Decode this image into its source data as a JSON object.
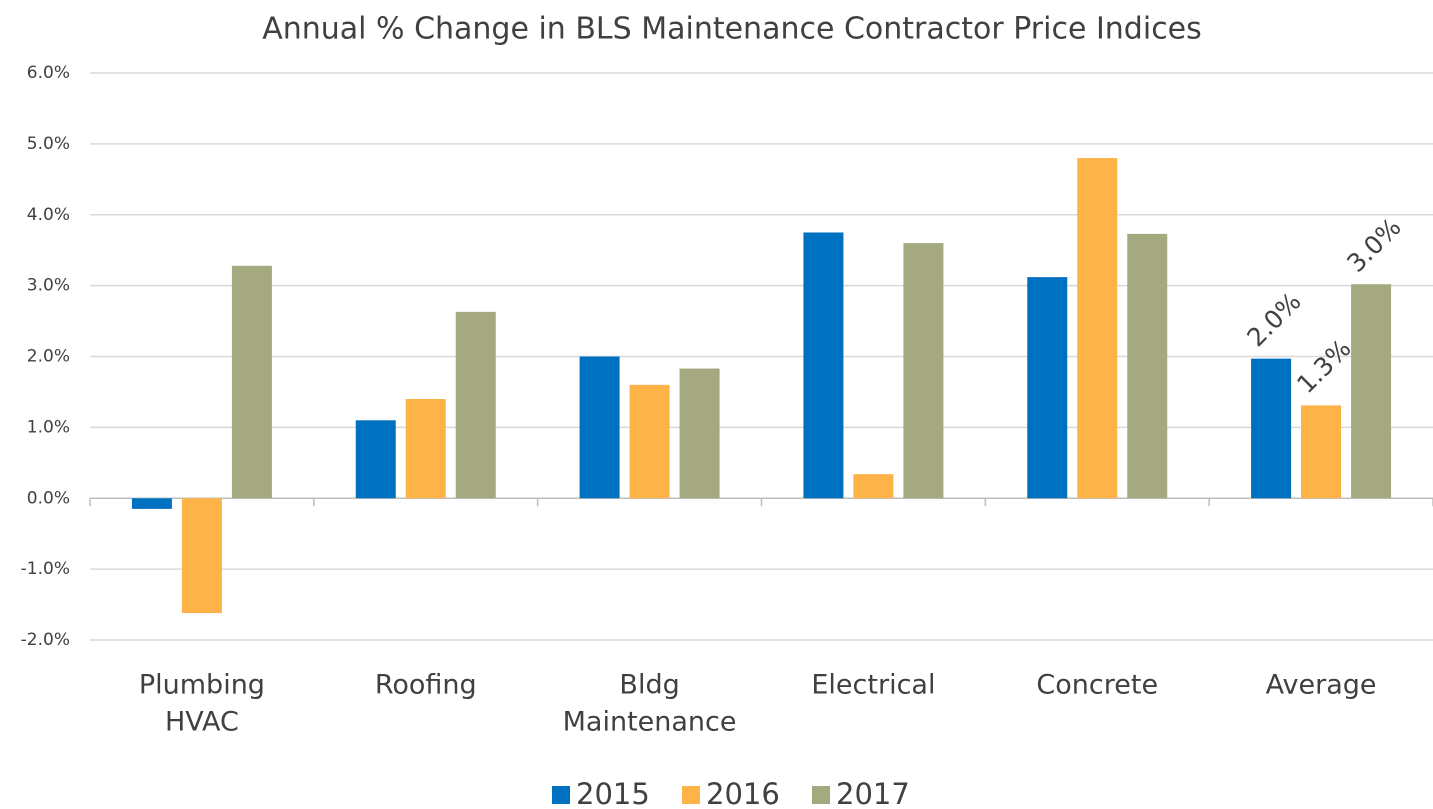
{
  "chart_data": {
    "type": "bar",
    "title": "Annual % Change in BLS Maintenance Contractor Price Indices",
    "categories": [
      [
        "Plumbing",
        "HVAC"
      ],
      [
        "Roofing"
      ],
      [
        "Bldg",
        "Maintenance"
      ],
      [
        "Electrical"
      ],
      [
        "Concrete"
      ],
      [
        "Average"
      ]
    ],
    "series": [
      {
        "name": "2015",
        "color": "#0070c0",
        "values": [
          -0.15,
          1.1,
          2.0,
          3.75,
          3.12,
          1.97
        ],
        "value_labels": [
          null,
          null,
          null,
          null,
          null,
          "2.0%"
        ]
      },
      {
        "name": "2016",
        "color": "#fdb347",
        "values": [
          -1.62,
          1.4,
          1.6,
          0.34,
          4.8,
          1.31
        ],
        "value_labels": [
          null,
          null,
          null,
          null,
          null,
          "1.3%"
        ]
      },
      {
        "name": "2017",
        "color": "#a5a97f",
        "values": [
          3.28,
          2.63,
          1.83,
          3.6,
          3.73,
          3.02
        ],
        "value_labels": [
          null,
          null,
          null,
          null,
          null,
          "3.0%"
        ]
      }
    ],
    "ylim": [
      -2,
      6
    ],
    "yticks": [
      {
        "value": -2,
        "label": "-2.0%"
      },
      {
        "value": -1,
        "label": "-1.0%"
      },
      {
        "value": 0,
        "label": "0.0%"
      },
      {
        "value": 1,
        "label": "1.0%"
      },
      {
        "value": 2,
        "label": "2.0%"
      },
      {
        "value": 3,
        "label": "3.0%"
      },
      {
        "value": 4,
        "label": "4.0%"
      },
      {
        "value": 5,
        "label": "5.0%"
      },
      {
        "value": 6,
        "label": "6.0%"
      }
    ],
    "grid": true,
    "legend": "bottom"
  }
}
